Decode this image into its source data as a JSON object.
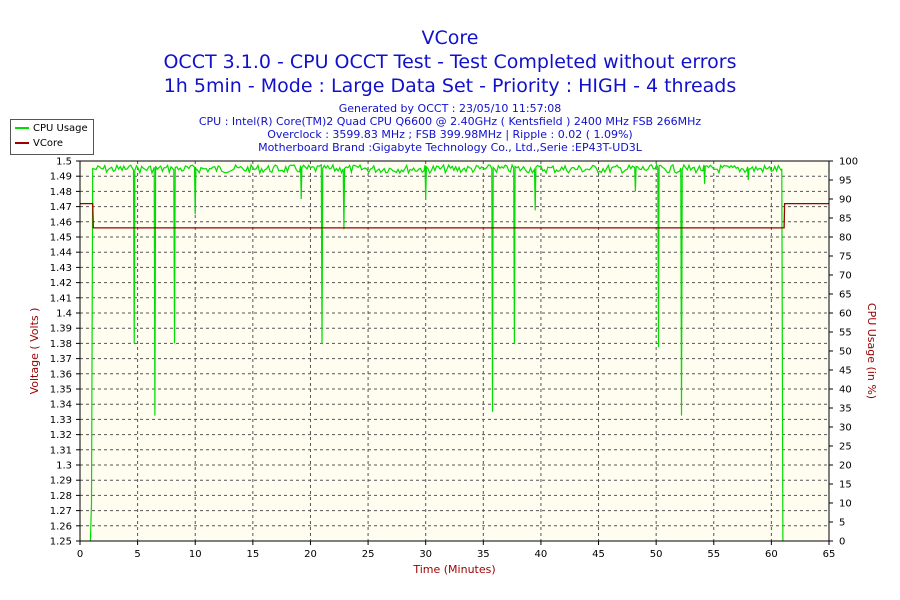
{
  "header": {
    "title": "VCore",
    "line2": "OCCT 3.1.0 - CPU OCCT Test - Test Completed without errors",
    "line3": "1h 5min - Mode : Large Data Set - Priority : HIGH - 4 threads"
  },
  "info": {
    "generated": "Generated by OCCT : 23/05/10 11:57:08",
    "cpu": "CPU : Intel(R) Core(TM)2 Quad CPU Q6600 @ 2.40GHz ( Kentsfield ) 2400 MHz FSB 266MHz",
    "overclock": "Overclock : 3599.83 MHz ; FSB 399.98MHz | Ripple : 0.02 ( 1.09%)",
    "motherboard": "Motherboard Brand :Gigabyte Technology Co., Ltd.,Serie :EP43T-UD3L"
  },
  "legend": [
    {
      "label": "CPU Usage",
      "color": "#00dd00"
    },
    {
      "label": "VCore",
      "color": "#990000"
    }
  ],
  "chart_data": {
    "type": "line",
    "xlabel": "Time (Minutes)",
    "ylabel": "Voltage ( Volts )",
    "y2label": "CPU Usage (in %)",
    "xlim": [
      0,
      65
    ],
    "ylim": [
      1.25,
      1.5
    ],
    "y2lim": [
      0,
      100
    ],
    "x_ticks": [
      "0",
      "5",
      "10",
      "15",
      "20",
      "25",
      "30",
      "35",
      "40",
      "45",
      "50",
      "55",
      "60",
      "65"
    ],
    "y_ticks": [
      "1.25",
      "1.26",
      "1.27",
      "1.28",
      "1.29",
      "1.3",
      "1.31",
      "1.32",
      "1.33",
      "1.34",
      "1.35",
      "1.36",
      "1.37",
      "1.38",
      "1.39",
      "1.4",
      "1.41",
      "1.42",
      "1.43",
      "1.44",
      "1.45",
      "1.46",
      "1.47",
      "1.48",
      "1.49",
      "1.5"
    ],
    "y2_ticks": [
      "0",
      "5",
      "10",
      "15",
      "20",
      "25",
      "30",
      "35",
      "40",
      "45",
      "50",
      "55",
      "60",
      "65",
      "70",
      "75",
      "80",
      "85",
      "90",
      "95",
      "100"
    ],
    "grid": true,
    "legend_position": "top-left",
    "colors": {
      "cpu": "#00dd00",
      "vcore": "#990000",
      "axis_text": "#990000",
      "grid": "#555555",
      "plot_bg": "#fffdf0"
    },
    "series": [
      {
        "name": "VCore",
        "axis": "left",
        "x": [
          0,
          1.1,
          1.15,
          61.1,
          61.15,
          65
        ],
        "y": [
          1.472,
          1.472,
          1.456,
          1.456,
          1.472,
          1.472
        ]
      },
      {
        "name": "CPU Usage",
        "axis": "right",
        "base": 99,
        "x_start": 0.9,
        "x_end": 61.0,
        "start_ramp": [
          [
            0.9,
            0
          ],
          [
            1.0,
            10
          ],
          [
            1.1,
            98
          ]
        ],
        "end_ramp": [
          [
            60.9,
            98
          ],
          [
            61.0,
            0
          ]
        ],
        "dips": [
          {
            "x": 4.7,
            "y": 52
          },
          {
            "x": 6.5,
            "y": 33
          },
          {
            "x": 8.2,
            "y": 52
          },
          {
            "x": 10.0,
            "y": 86
          },
          {
            "x": 19.2,
            "y": 90
          },
          {
            "x": 21.0,
            "y": 52
          },
          {
            "x": 22.9,
            "y": 82
          },
          {
            "x": 30.0,
            "y": 90
          },
          {
            "x": 35.8,
            "y": 34
          },
          {
            "x": 37.7,
            "y": 52
          },
          {
            "x": 39.5,
            "y": 87
          },
          {
            "x": 48.2,
            "y": 92
          },
          {
            "x": 50.2,
            "y": 51
          },
          {
            "x": 52.2,
            "y": 33
          },
          {
            "x": 54.2,
            "y": 94
          },
          {
            "x": 58.0,
            "y": 95
          }
        ]
      }
    ]
  }
}
